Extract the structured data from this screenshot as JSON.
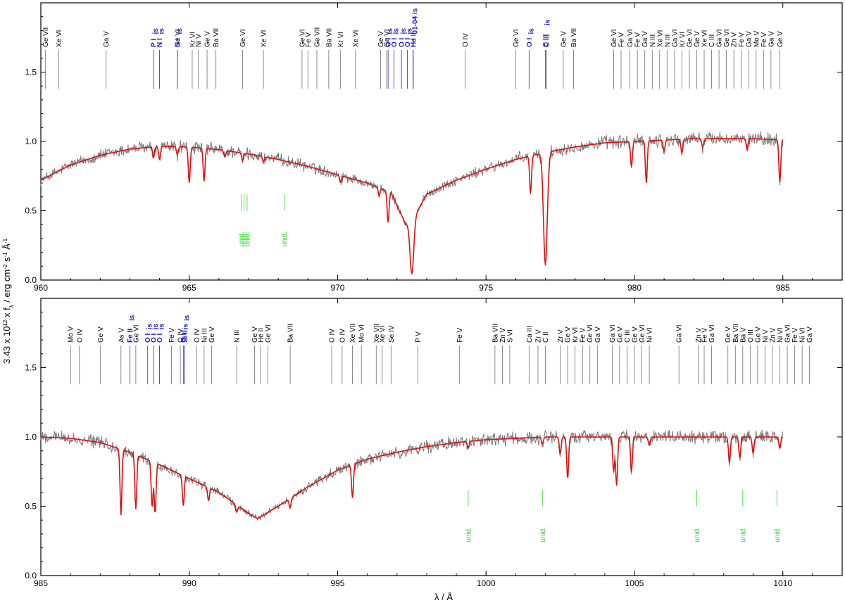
{
  "chart_data": [
    {
      "type": "line",
      "panel": "top",
      "xlim": [
        960,
        987
      ],
      "ylim": [
        0,
        2.0
      ],
      "xticks": [
        960,
        965,
        970,
        975,
        980,
        985
      ],
      "yticks": [
        0.0,
        0.5,
        1.0,
        1.5
      ],
      "ytick_labels": [
        "0.0",
        "0.5",
        "1.0",
        "1.5"
      ],
      "grid": false,
      "series": [
        {
          "role": "observation",
          "color": "#7a7a7a"
        },
        {
          "role": "model",
          "color": "#dd1111"
        }
      ],
      "continuum": [
        [
          960,
          0.72
        ],
        [
          961,
          0.83
        ],
        [
          962,
          0.9
        ],
        [
          963,
          0.945
        ],
        [
          964,
          0.965
        ],
        [
          965,
          0.96
        ],
        [
          966,
          0.94
        ],
        [
          967,
          0.91
        ],
        [
          968,
          0.87
        ],
        [
          969,
          0.82
        ],
        [
          970,
          0.76
        ],
        [
          971,
          0.7
        ],
        [
          971.8,
          0.63
        ],
        [
          972.3,
          0.4
        ],
        [
          972.7,
          0.5
        ],
        [
          973,
          0.62
        ],
        [
          974,
          0.72
        ],
        [
          975,
          0.8
        ],
        [
          976,
          0.87
        ],
        [
          977,
          0.92
        ],
        [
          978,
          0.96
        ],
        [
          979,
          0.99
        ],
        [
          980,
          1.0
        ],
        [
          981,
          1.01
        ],
        [
          982,
          1.02
        ],
        [
          983,
          1.02
        ],
        [
          984,
          1.02
        ],
        [
          985,
          1.01
        ]
      ],
      "absorption_lines": [
        {
          "x": 963.8,
          "depth": 0.08
        },
        {
          "x": 964.0,
          "depth": 0.1
        },
        {
          "x": 964.6,
          "depth": 0.06
        },
        {
          "x": 965.0,
          "depth": 0.27
        },
        {
          "x": 965.5,
          "depth": 0.25
        },
        {
          "x": 966.2,
          "depth": 0.05
        },
        {
          "x": 966.8,
          "depth": 0.06
        },
        {
          "x": 967.5,
          "depth": 0.04
        },
        {
          "x": 970.1,
          "depth": 0.06
        },
        {
          "x": 971.4,
          "depth": 0.08
        },
        {
          "x": 971.7,
          "depth": 0.35
        },
        {
          "x": 972.5,
          "depth": 0.9
        },
        {
          "x": 976.5,
          "depth": 0.3
        },
        {
          "x": 977.0,
          "depth": 0.88
        },
        {
          "x": 979.9,
          "depth": 0.18
        },
        {
          "x": 980.4,
          "depth": 0.3
        },
        {
          "x": 981.0,
          "depth": 0.08
        },
        {
          "x": 981.6,
          "depth": 0.1
        },
        {
          "x": 982.3,
          "depth": 0.06
        },
        {
          "x": 983.8,
          "depth": 0.08
        },
        {
          "x": 984.9,
          "depth": 0.3
        }
      ],
      "photospheric_labels": [
        {
          "label": "Ge VII",
          "x": 960.15
        },
        {
          "label": "Xe VI",
          "x": 960.6
        },
        {
          "label": "Ga V",
          "x": 962.2
        },
        {
          "label": "Ge VI",
          "x": 964.6
        },
        {
          "label": "Kr VI",
          "x": 965.1
        },
        {
          "label": "Ni V",
          "x": 965.3
        },
        {
          "label": "Ge V",
          "x": 965.6
        },
        {
          "label": "Ba VII",
          "x": 965.9
        },
        {
          "label": "Ge VI",
          "x": 966.8
        },
        {
          "label": "Xe VI",
          "x": 967.5
        },
        {
          "label": "Ge VI",
          "x": 968.8
        },
        {
          "label": "Fe V",
          "x": 969.0
        },
        {
          "label": "Ge VII",
          "x": 969.3
        },
        {
          "label": "Ba VII",
          "x": 969.7
        },
        {
          "label": "Kr VI",
          "x": 970.1
        },
        {
          "label": "Xe VI",
          "x": 970.6
        },
        {
          "label": "Ge V",
          "x": 971.45
        },
        {
          "label": "Ge VI",
          "x": 971.65
        },
        {
          "label": "He II",
          "x": 972.55
        },
        {
          "label": "O IV",
          "x": 974.3
        },
        {
          "label": "Ge VI",
          "x": 976.0
        },
        {
          "label": "C III",
          "x": 977.05
        },
        {
          "label": "Ge V",
          "x": 977.6
        },
        {
          "label": "Ba VII",
          "x": 977.95
        },
        {
          "label": "Ge VI",
          "x": 979.3
        },
        {
          "label": "Fe V",
          "x": 979.55
        },
        {
          "label": "Ga VI",
          "x": 979.85
        },
        {
          "label": "Fe V",
          "x": 980.1
        },
        {
          "label": "Ga V",
          "x": 980.35
        },
        {
          "label": "N III",
          "x": 980.6
        },
        {
          "label": "Xe VI",
          "x": 980.85
        },
        {
          "label": "N III",
          "x": 981.1
        },
        {
          "label": "Ga VI",
          "x": 981.35
        },
        {
          "label": "Kr VI",
          "x": 981.6
        },
        {
          "label": "Ge VI",
          "x": 981.85
        },
        {
          "label": "Ge V",
          "x": 982.1
        },
        {
          "label": "Xe VI",
          "x": 982.35
        },
        {
          "label": "C III",
          "x": 982.6
        },
        {
          "label": "Ga VI",
          "x": 982.85
        },
        {
          "label": "Ge VI",
          "x": 983.1
        },
        {
          "label": "Zn V",
          "x": 983.35
        },
        {
          "label": "Fe V",
          "x": 983.6
        },
        {
          "label": "Ga V",
          "x": 983.85
        },
        {
          "label": "Mo V",
          "x": 984.1
        },
        {
          "label": "Fe V",
          "x": 984.35
        },
        {
          "label": "Ga V",
          "x": 984.6
        },
        {
          "label": "Ge V",
          "x": 984.9
        }
      ],
      "interstellar_labels": [
        {
          "label": "P I",
          "sub": "is",
          "x": 963.8
        },
        {
          "label": "N I",
          "sub": "is",
          "x": 964.0
        },
        {
          "label": "N I",
          "sub": "is",
          "x": 964.6
        },
        {
          "label": "O I",
          "sub": "is",
          "x": 971.7
        },
        {
          "label": "O I",
          "sub": "is",
          "x": 971.9
        },
        {
          "label": "O I",
          "sub": "is",
          "x": 972.15
        },
        {
          "label": "O I",
          "sub": "is",
          "x": 972.35
        },
        {
          "label": "H I",
          "sub": "01-04 is",
          "x": 972.54
        },
        {
          "label": "O I",
          "sub": "is",
          "x": 976.45
        },
        {
          "label": "C III",
          "sub": "is",
          "x": 977.0
        }
      ],
      "unidentified_labels": [
        {
          "label": "unid.",
          "x": 966.75
        },
        {
          "label": "unid.",
          "x": 966.85
        },
        {
          "label": "unid.",
          "x": 966.95
        },
        {
          "label": "unid.",
          "x": 968.2
        }
      ]
    },
    {
      "type": "line",
      "panel": "bottom",
      "xlim": [
        985,
        1012
      ],
      "ylim": [
        0,
        2.0
      ],
      "xticks": [
        985,
        990,
        995,
        1000,
        1005,
        1010
      ],
      "yticks": [
        0.0,
        0.5,
        1.0,
        1.5
      ],
      "ytick_labels": [
        "0.0",
        "0.5",
        "1.0",
        "1.5"
      ],
      "grid": false,
      "series": [
        {
          "role": "observation",
          "color": "#7a7a7a"
        },
        {
          "role": "model",
          "color": "#dd1111"
        }
      ],
      "continuum": [
        [
          985,
          1.0
        ],
        [
          986,
          0.99
        ],
        [
          987,
          0.96
        ],
        [
          988,
          0.89
        ],
        [
          989,
          0.8
        ],
        [
          990,
          0.7
        ],
        [
          991,
          0.6
        ],
        [
          992,
          0.45
        ],
        [
          992.3,
          0.41
        ],
        [
          993,
          0.5
        ],
        [
          994,
          0.64
        ],
        [
          995,
          0.76
        ],
        [
          996,
          0.84
        ],
        [
          997,
          0.89
        ],
        [
          998,
          0.93
        ],
        [
          999,
          0.96
        ],
        [
          1000,
          0.98
        ],
        [
          1001,
          0.99
        ],
        [
          1002,
          1.0
        ],
        [
          1003,
          1.0
        ],
        [
          1004,
          1.0
        ],
        [
          1005,
          1.0
        ],
        [
          1006,
          1.0
        ],
        [
          1007,
          1.0
        ],
        [
          1008,
          1.0
        ],
        [
          1009,
          1.0
        ],
        [
          1010,
          1.0
        ]
      ],
      "absorption_lines": [
        {
          "x": 987.7,
          "depth": 0.52
        },
        {
          "x": 988.2,
          "depth": 0.45
        },
        {
          "x": 988.75,
          "depth": 0.4
        },
        {
          "x": 988.85,
          "depth": 0.45
        },
        {
          "x": 989.8,
          "depth": 0.3
        },
        {
          "x": 990.65,
          "depth": 0.15
        },
        {
          "x": 991.6,
          "depth": 0.1
        },
        {
          "x": 993.4,
          "depth": 0.12
        },
        {
          "x": 995.5,
          "depth": 0.3
        },
        {
          "x": 999.4,
          "depth": 0.05
        },
        {
          "x": 1001.9,
          "depth": 0.05
        },
        {
          "x": 1002.5,
          "depth": 0.12
        },
        {
          "x": 1002.75,
          "depth": 0.3
        },
        {
          "x": 1004.3,
          "depth": 0.25
        },
        {
          "x": 1004.4,
          "depth": 0.35
        },
        {
          "x": 1004.9,
          "depth": 0.25
        },
        {
          "x": 1005.5,
          "depth": 0.06
        },
        {
          "x": 1008.2,
          "depth": 0.18
        },
        {
          "x": 1008.55,
          "depth": 0.15
        },
        {
          "x": 1009.0,
          "depth": 0.12
        },
        {
          "x": 1009.9,
          "depth": 0.08
        }
      ],
      "photospheric_labels": [
        {
          "label": "Mo V",
          "x": 986.0
        },
        {
          "label": "O IV",
          "x": 986.3
        },
        {
          "label": "Ge V",
          "x": 987.0
        },
        {
          "label": "As V",
          "x": 987.7
        },
        {
          "label": "Ge VI",
          "x": 988.2
        },
        {
          "label": "Fe V",
          "x": 989.4
        },
        {
          "label": "O IV",
          "x": 989.7
        },
        {
          "label": "O IV",
          "x": 990.25
        },
        {
          "label": "Ni III",
          "x": 990.5
        },
        {
          "label": "Ge V",
          "x": 990.75
        },
        {
          "label": "N III",
          "x": 991.6
        },
        {
          "label": "Ge V",
          "x": 992.2
        },
        {
          "label": "He II",
          "x": 992.4
        },
        {
          "label": "Ge VI",
          "x": 992.65
        },
        {
          "label": "Ba VII",
          "x": 993.4
        },
        {
          "label": "O IV",
          "x": 994.8
        },
        {
          "label": "O IV",
          "x": 995.15
        },
        {
          "label": "Xe VII",
          "x": 995.5
        },
        {
          "label": "Mo VI",
          "x": 995.8
        },
        {
          "label": "Xe VII",
          "x": 996.3
        },
        {
          "label": "Xe VI",
          "x": 996.5
        },
        {
          "label": "Se IV",
          "x": 996.8
        },
        {
          "label": "P V",
          "x": 997.7
        },
        {
          "label": "Fe V",
          "x": 999.1
        },
        {
          "label": "Ba VII",
          "x": 1000.3
        },
        {
          "label": "Zn V",
          "x": 1000.55
        },
        {
          "label": "S VI",
          "x": 1000.8
        },
        {
          "label": "Ca III",
          "x": 1001.45
        },
        {
          "label": "Zr V",
          "x": 1001.75
        },
        {
          "label": "C II",
          "x": 1002.0
        },
        {
          "label": "Zr V",
          "x": 1002.5
        },
        {
          "label": "Ge V",
          "x": 1002.75
        },
        {
          "label": "Kr VI",
          "x": 1003.0
        },
        {
          "label": "Fe V",
          "x": 1003.25
        },
        {
          "label": "Ge VI",
          "x": 1003.5
        },
        {
          "label": "Ga V",
          "x": 1003.75
        },
        {
          "label": "Ga VI",
          "x": 1004.25
        },
        {
          "label": "Ge V",
          "x": 1004.5
        },
        {
          "label": "C III",
          "x": 1004.75
        },
        {
          "label": "Ge V",
          "x": 1005.0
        },
        {
          "label": "Ge VI",
          "x": 1005.25
        },
        {
          "label": "Ni VI",
          "x": 1005.5
        },
        {
          "label": "Ga VI",
          "x": 1006.5
        },
        {
          "label": "Zn V",
          "x": 1007.15
        },
        {
          "label": "Fe V",
          "x": 1007.35
        },
        {
          "label": "Ga VI",
          "x": 1007.6
        },
        {
          "label": "Ge V",
          "x": 1008.15
        },
        {
          "label": "Ba VII",
          "x": 1008.4
        },
        {
          "label": "Ba V",
          "x": 1008.65
        },
        {
          "label": "O III",
          "x": 1008.9
        },
        {
          "label": "Ge V",
          "x": 1009.15
        },
        {
          "label": "Ni V",
          "x": 1009.4
        },
        {
          "label": "Zn V",
          "x": 1009.65
        },
        {
          "label": "Ni VI",
          "x": 1009.9
        },
        {
          "label": "Ga VI",
          "x": 1010.15
        },
        {
          "label": "Fe V",
          "x": 1010.4
        },
        {
          "label": "Ni VI",
          "x": 1010.65
        },
        {
          "label": "Ga V",
          "x": 1010.9
        }
      ],
      "interstellar_labels": [
        {
          "label": "Fe II",
          "sub": "is",
          "x": 988.0
        },
        {
          "label": "O I",
          "sub": "is",
          "x": 988.6
        },
        {
          "label": "O I",
          "sub": "is",
          "x": 988.8
        },
        {
          "label": "O I",
          "sub": "is",
          "x": 989.0
        },
        {
          "label": "O I",
          "sub": "is",
          "x": 989.8
        },
        {
          "label": "Si II",
          "sub": "is",
          "x": 989.85
        }
      ],
      "unidentified_labels": [
        {
          "label": "unid.",
          "x": 999.4
        },
        {
          "label": "unid.",
          "x": 1001.9
        },
        {
          "label": "unid.",
          "x": 1007.1
        },
        {
          "label": "unid.",
          "x": 1008.65
        },
        {
          "label": "unid.",
          "x": 1009.8
        }
      ]
    }
  ],
  "axes": {
    "xlabel": "λ / Å",
    "ylabel_main": "3.43 x 10",
    "ylabel_exp": "12",
    "ylabel_rest": "  x f",
    "ylabel_sub": "λ",
    "ylabel_units": " / erg cm",
    "ylabel_exp2": "-2",
    "ylabel_units2": " s",
    "ylabel_exp3": "-1",
    "ylabel_units3": " Å",
    "ylabel_exp4": "-1"
  }
}
